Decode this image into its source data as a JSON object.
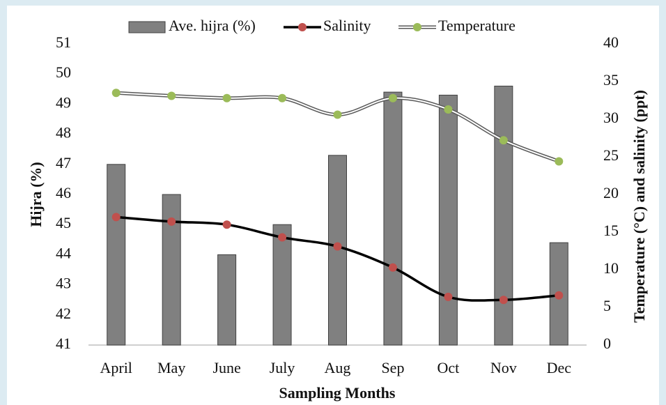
{
  "chart_data": {
    "type": "bar",
    "categories": [
      "April",
      "May",
      "June",
      "July",
      "Aug",
      "Sep",
      "Oct",
      "Nov",
      "Dec"
    ],
    "series": [
      {
        "name": "Ave. hijra (%)",
        "type": "bar",
        "color": "#808080",
        "axis": "y",
        "values": [
          47,
          46,
          44,
          45,
          47.3,
          49.4,
          49.3,
          49.6,
          44.4
        ]
      },
      {
        "name": "Salinity",
        "type": "line",
        "color": "#c0504d",
        "axis": "y2",
        "values": [
          17.0,
          16.4,
          16.0,
          14.3,
          13.1,
          10.3,
          6.4,
          6.0,
          6.6
        ]
      },
      {
        "name": "Temperature",
        "type": "double-line",
        "color": "#9bbb59",
        "axis": "y2",
        "values": [
          33.5,
          33.1,
          32.8,
          32.8,
          30.6,
          32.8,
          31.3,
          27.2,
          24.4
        ]
      }
    ],
    "xlabel": "Sampling Months",
    "ylabel": "Hijra (%)",
    "y2label": "Temperature (°C)  and salinity (ppt)",
    "ylim": [
      41,
      51
    ],
    "yticks": [
      41,
      42,
      43,
      44,
      45,
      46,
      47,
      48,
      49,
      50,
      51
    ],
    "y2lim": [
      0,
      40
    ],
    "y2ticks": [
      0,
      5,
      10,
      15,
      20,
      25,
      30,
      35,
      40
    ],
    "grid": false,
    "legend": "top"
  }
}
